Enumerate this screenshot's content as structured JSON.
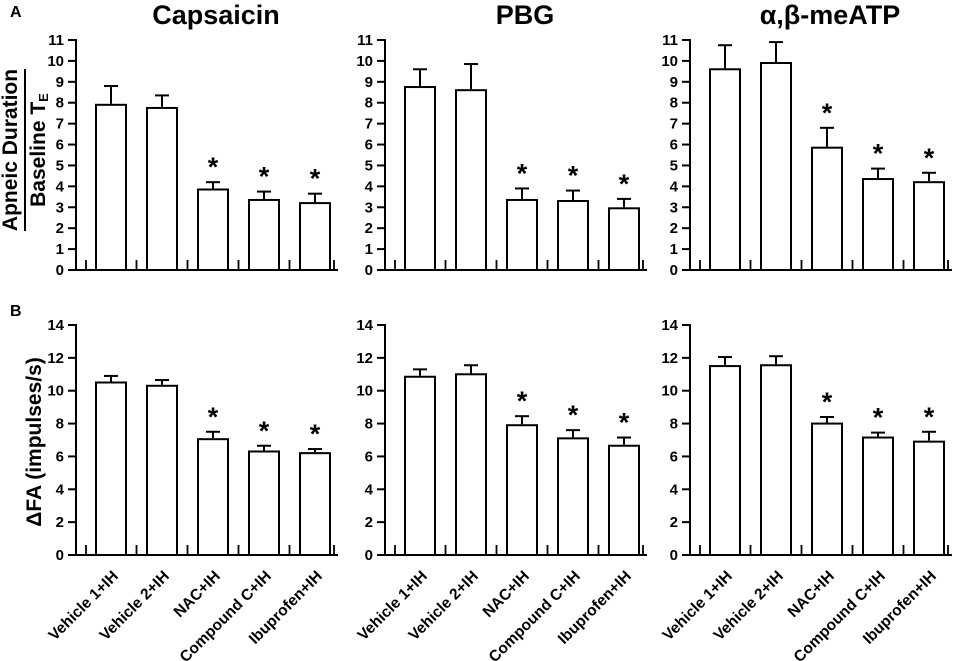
{
  "figure": {
    "panels": {
      "a": "A",
      "b": "B"
    },
    "column_titles": [
      "Capsaicin",
      "PBG",
      "α,β-meATP"
    ],
    "row_a_ylabel": {
      "numerator": "Apneic Duration",
      "denominator": "Baseline T",
      "denominator_sub": "E"
    },
    "row_b_ylabel": "ΔFA (impulses/s)",
    "significance_marker": "*",
    "colors": {
      "bar_fill": "#ffffff",
      "line": "#000000",
      "background": "#ffffff"
    }
  },
  "categories": [
    "Vehicle 1+IH",
    "Vehicle 2+IH",
    "NAC+IH",
    "Compound C+IH",
    "Ibuprofen+IH"
  ],
  "chart_data": [
    {
      "id": "A-capsaicin",
      "type": "bar",
      "row": "A",
      "title": "Capsaicin",
      "ylabel": "Apneic Duration / Baseline TE",
      "ylim": [
        0,
        11
      ],
      "ytick_step": 1,
      "grid": false,
      "categories": [
        "Vehicle 1+IH",
        "Vehicle 2+IH",
        "NAC+IH",
        "Compound C+IH",
        "Ibuprofen+IH"
      ],
      "values": [
        7.9,
        7.75,
        3.85,
        3.35,
        3.2
      ],
      "errors": [
        0.9,
        0.6,
        0.35,
        0.4,
        0.45
      ],
      "significant": [
        false,
        false,
        true,
        true,
        true
      ],
      "show_x_tick_labels": false
    },
    {
      "id": "A-pbg",
      "type": "bar",
      "row": "A",
      "title": "PBG",
      "ylabel": "Apneic Duration / Baseline TE",
      "ylim": [
        0,
        11
      ],
      "ytick_step": 1,
      "grid": false,
      "categories": [
        "Vehicle 1+IH",
        "Vehicle 2+IH",
        "NAC+IH",
        "Compound C+IH",
        "Ibuprofen+IH"
      ],
      "values": [
        8.75,
        8.6,
        3.35,
        3.3,
        2.95
      ],
      "errors": [
        0.85,
        1.25,
        0.55,
        0.5,
        0.45
      ],
      "significant": [
        false,
        false,
        true,
        true,
        true
      ],
      "show_x_tick_labels": false
    },
    {
      "id": "A-meATP",
      "type": "bar",
      "row": "A",
      "title": "α,β-meATP",
      "ylabel": "Apneic Duration / Baseline TE",
      "ylim": [
        0,
        11
      ],
      "ytick_step": 1,
      "grid": false,
      "categories": [
        "Vehicle 1+IH",
        "Vehicle 2+IH",
        "NAC+IH",
        "Compound C+IH",
        "Ibuprofen+IH"
      ],
      "values": [
        9.6,
        9.9,
        5.85,
        4.35,
        4.2
      ],
      "errors": [
        1.15,
        1.0,
        0.95,
        0.5,
        0.45
      ],
      "significant": [
        false,
        false,
        true,
        true,
        true
      ],
      "show_x_tick_labels": false
    },
    {
      "id": "B-capsaicin",
      "type": "bar",
      "row": "B",
      "title": "Capsaicin",
      "ylabel": "ΔFA (impulses/s)",
      "ylim": [
        0,
        14
      ],
      "ytick_step": 2,
      "grid": false,
      "categories": [
        "Vehicle 1+IH",
        "Vehicle 2+IH",
        "NAC+IH",
        "Compound C+IH",
        "Ibuprofen+IH"
      ],
      "values": [
        10.5,
        10.3,
        7.05,
        6.3,
        6.2
      ],
      "errors": [
        0.4,
        0.35,
        0.45,
        0.35,
        0.25
      ],
      "significant": [
        false,
        false,
        true,
        true,
        true
      ],
      "show_x_tick_labels": true
    },
    {
      "id": "B-pbg",
      "type": "bar",
      "row": "B",
      "title": "PBG",
      "ylabel": "ΔFA (impulses/s)",
      "ylim": [
        0,
        14
      ],
      "ytick_step": 2,
      "grid": false,
      "categories": [
        "Vehicle 1+IH",
        "Vehicle 2+IH",
        "NAC+IH",
        "Compound C+IH",
        "Ibuprofen+IH"
      ],
      "values": [
        10.85,
        11.0,
        7.9,
        7.1,
        6.65
      ],
      "errors": [
        0.45,
        0.55,
        0.55,
        0.5,
        0.5
      ],
      "significant": [
        false,
        false,
        true,
        true,
        true
      ],
      "show_x_tick_labels": true
    },
    {
      "id": "B-meATP",
      "type": "bar",
      "row": "B",
      "title": "α,β-meATP",
      "ylabel": "ΔFA (impulses/s)",
      "ylim": [
        0,
        14
      ],
      "ytick_step": 2,
      "grid": false,
      "categories": [
        "Vehicle 1+IH",
        "Vehicle 2+IH",
        "NAC+IH",
        "Compound C+IH",
        "Ibuprofen+IH"
      ],
      "values": [
        11.5,
        11.55,
        8.0,
        7.15,
        6.9
      ],
      "errors": [
        0.55,
        0.55,
        0.4,
        0.3,
        0.6
      ],
      "significant": [
        false,
        false,
        true,
        true,
        true
      ],
      "show_x_tick_labels": true
    }
  ]
}
